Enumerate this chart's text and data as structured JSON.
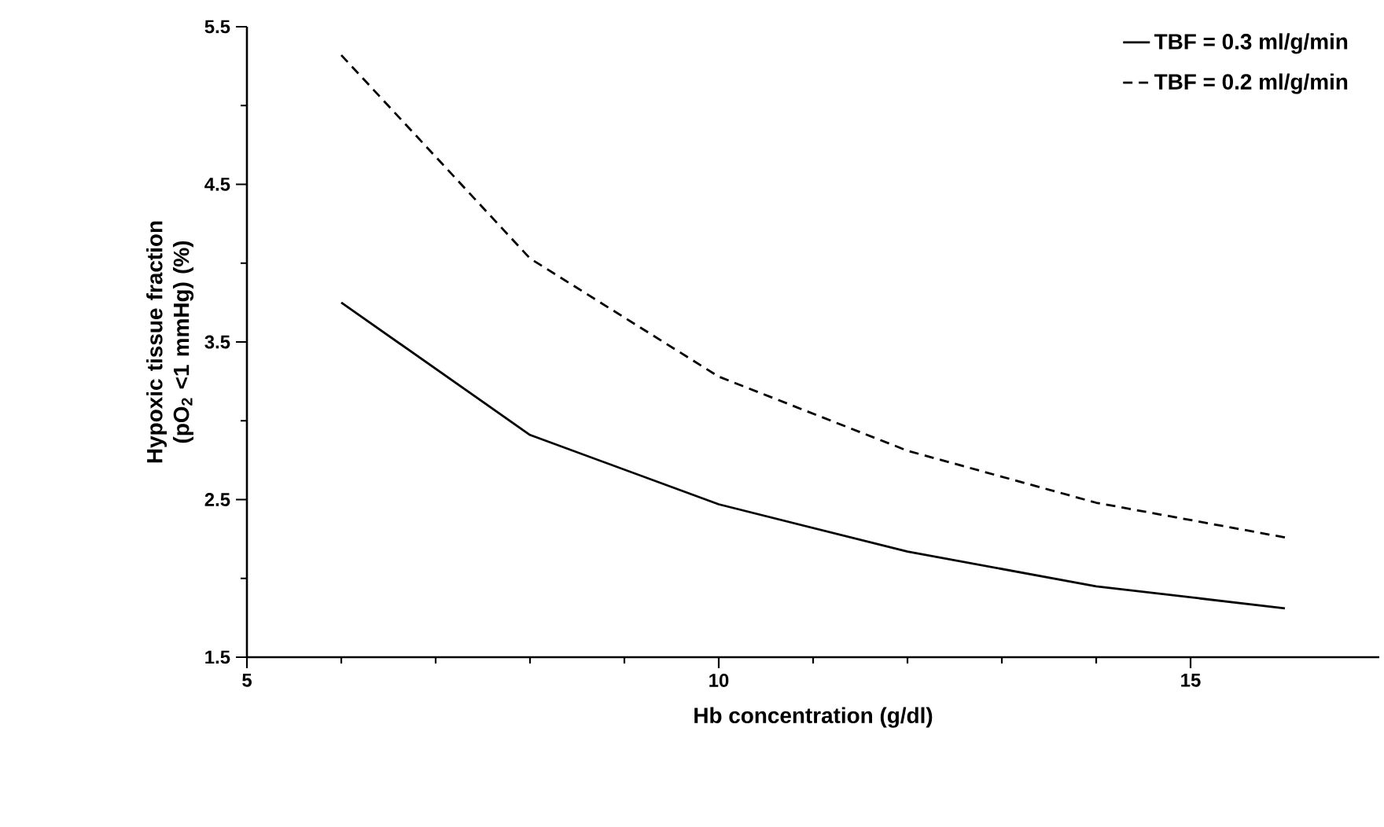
{
  "chart_data": {
    "type": "line",
    "xlabel": "Hb concentration (g/dl)",
    "ylabel": "Hypoxic tissue fraction (pO$_{2}$ <1 mmHg) (%)",
    "x": [
      6,
      8,
      10,
      12,
      14,
      16
    ],
    "series": [
      {
        "name": "TBF = 0.3 ml/g/min",
        "color": "#000000",
        "line_style": "solid",
        "values": [
          3.75,
          2.91,
          2.47,
          2.17,
          1.95,
          1.81
        ]
      },
      {
        "name": "TBF = 0.2 ml/g/min",
        "color": "#000000",
        "line_style": "dashed",
        "values": [
          5.32,
          4.03,
          3.28,
          2.81,
          2.48,
          2.26
        ]
      }
    ],
    "xlim": [
      5,
      17
    ],
    "xticks": [
      5,
      10,
      15
    ],
    "ylim": [
      1.5,
      5.5
    ],
    "yticks": [
      1.5,
      2.5,
      3.5,
      4.5,
      5.5
    ],
    "grid": false,
    "legend": "top right",
    "marker": "none"
  }
}
